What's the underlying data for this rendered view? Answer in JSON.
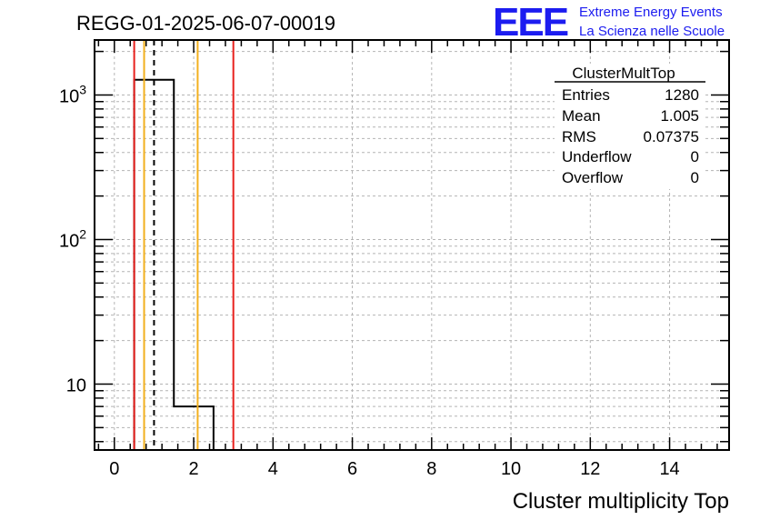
{
  "chart_data": {
    "type": "histogram",
    "title": "REGG-01-2025-06-07-00019",
    "xlabel": "Cluster multiplicity Top",
    "ylabel": "",
    "xlim": [
      -0.5,
      15.5
    ],
    "ylim": [
      3.5,
      2400
    ],
    "yscale": "log",
    "x_ticks": [
      0,
      2,
      4,
      6,
      8,
      10,
      12,
      14
    ],
    "x_tick_labels": [
      "0",
      "2",
      "4",
      "6",
      "8",
      "10",
      "12",
      "14"
    ],
    "y_tick_labels": [
      {
        "value": 1000,
        "base": "10",
        "exp": "3"
      },
      {
        "value": 100,
        "base": "10",
        "exp": "2"
      },
      {
        "value": 10,
        "base": "10",
        "exp": ""
      }
    ],
    "bins": [
      {
        "low": 0.5,
        "high": 1.5,
        "count": 1273
      },
      {
        "low": 1.5,
        "high": 2.5,
        "count": 7
      }
    ],
    "vertical_lines": [
      {
        "x": 0.5,
        "color": "#e8211e",
        "style": "solid"
      },
      {
        "x": 0.75,
        "color": "#f2b01e",
        "style": "solid"
      },
      {
        "x": 1.0,
        "color": "#000000",
        "style": "dashed"
      },
      {
        "x": 2.1,
        "color": "#f2b01e",
        "style": "solid"
      },
      {
        "x": 3.0,
        "color": "#e8211e",
        "style": "solid"
      }
    ],
    "grid": true,
    "stats": {
      "name": "ClusterMultTop",
      "rows": [
        {
          "label": "Entries",
          "value": "1280"
        },
        {
          "label": "Mean",
          "value": "1.005"
        },
        {
          "label": "RMS",
          "value": "0.07375"
        },
        {
          "label": "Underflow",
          "value": "0"
        },
        {
          "label": "Overflow",
          "value": "0"
        }
      ]
    }
  },
  "logo": {
    "big": "EEE",
    "line1": "Extreme Energy Events",
    "line2": "La Scienza nelle Scuole",
    "color": "#1c1cf0"
  }
}
